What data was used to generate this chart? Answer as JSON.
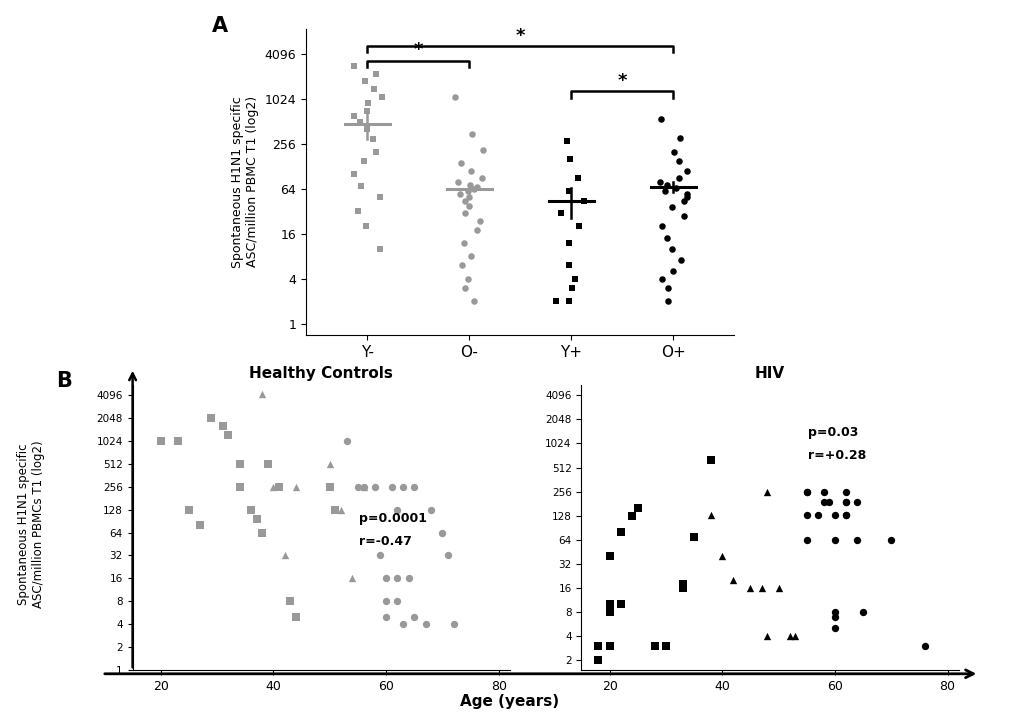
{
  "panel_A": {
    "ylabel": "Spontaneous H1N1 specific\nASC/million PBMC T1 (log2)",
    "groups": [
      "Y-",
      "O-",
      "Y+",
      "O+"
    ],
    "colors": [
      "#999999",
      "#999999",
      "#000000",
      "#000000"
    ],
    "markers": [
      "s",
      "o",
      "s",
      "o"
    ],
    "means": [
      480,
      64,
      44,
      68
    ],
    "sem_low": [
      300,
      56,
      26,
      58
    ],
    "sem_high": [
      760,
      73,
      65,
      78
    ],
    "yticks": [
      1,
      4,
      16,
      64,
      256,
      1024,
      4096
    ],
    "ylim": [
      0.7,
      9000
    ],
    "Y_minus_data": [
      2800,
      2200,
      1800,
      1400,
      1100,
      900,
      700,
      600,
      500,
      400,
      300,
      200,
      150,
      100,
      70,
      50,
      32,
      20,
      10
    ],
    "O_minus_data": [
      1100,
      350,
      210,
      140,
      110,
      90,
      80,
      72,
      68,
      64,
      60,
      55,
      50,
      44,
      38,
      30,
      24,
      18,
      12,
      8,
      6,
      4,
      3,
      2
    ],
    "Y_plus_data": [
      280,
      160,
      90,
      60,
      44,
      30,
      20,
      12,
      6,
      4,
      3,
      2,
      2
    ],
    "O_plus_data": [
      560,
      310,
      200,
      150,
      110,
      90,
      80,
      72,
      66,
      60,
      55,
      50,
      44,
      36,
      28,
      20,
      14,
      10,
      7,
      5,
      4,
      3,
      2
    ]
  },
  "panel_B_HC": {
    "title": "Healthy Controls",
    "color": "#999999",
    "p_text": "p=0.0001",
    "r_text": "r=-0.47",
    "yticks": [
      1,
      2,
      4,
      8,
      16,
      32,
      64,
      128,
      256,
      512,
      1024,
      2048,
      4096
    ],
    "xlim": [
      15,
      82
    ],
    "ylim": [
      1,
      5500
    ],
    "young_squares": [
      [
        20,
        1024
      ],
      [
        23,
        1024
      ],
      [
        25,
        128
      ],
      [
        27,
        80
      ],
      [
        29,
        2048
      ],
      [
        31,
        1600
      ],
      [
        32,
        1200
      ],
      [
        34,
        512
      ],
      [
        34,
        256
      ],
      [
        36,
        128
      ],
      [
        37,
        96
      ],
      [
        38,
        64
      ],
      [
        39,
        512
      ],
      [
        41,
        256
      ],
      [
        43,
        8
      ],
      [
        44,
        5
      ],
      [
        50,
        256
      ],
      [
        51,
        128
      ]
    ],
    "middle_triangles": [
      [
        38,
        4200
      ],
      [
        40,
        256
      ],
      [
        42,
        32
      ],
      [
        44,
        256
      ],
      [
        50,
        512
      ],
      [
        52,
        128
      ],
      [
        54,
        16
      ],
      [
        56,
        256
      ]
    ],
    "old_circles": [
      [
        53,
        1024
      ],
      [
        55,
        256
      ],
      [
        56,
        256
      ],
      [
        58,
        256
      ],
      [
        59,
        32
      ],
      [
        60,
        16
      ],
      [
        60,
        8
      ],
      [
        60,
        5
      ],
      [
        61,
        256
      ],
      [
        62,
        128
      ],
      [
        62,
        16
      ],
      [
        62,
        8
      ],
      [
        63,
        4
      ],
      [
        63,
        256
      ],
      [
        64,
        16
      ],
      [
        65,
        256
      ],
      [
        65,
        5
      ],
      [
        67,
        4
      ],
      [
        68,
        128
      ],
      [
        70,
        64
      ],
      [
        71,
        32
      ],
      [
        72,
        4
      ]
    ]
  },
  "panel_B_HIV": {
    "title": "HIV",
    "color": "#000000",
    "p_text": "p=0.03",
    "r_text": "r=+0.28",
    "yticks": [
      2,
      4,
      8,
      16,
      32,
      64,
      128,
      256,
      512,
      1024,
      2048,
      4096
    ],
    "xlim": [
      15,
      82
    ],
    "ylim": [
      1.5,
      5500
    ],
    "young_squares": [
      [
        18,
        3
      ],
      [
        18,
        2
      ],
      [
        18,
        2
      ],
      [
        20,
        40
      ],
      [
        20,
        10
      ],
      [
        20,
        8
      ],
      [
        20,
        3
      ],
      [
        22,
        80
      ],
      [
        22,
        10
      ],
      [
        24,
        128
      ],
      [
        25,
        160
      ],
      [
        28,
        3
      ],
      [
        30,
        3
      ],
      [
        33,
        18
      ],
      [
        33,
        16
      ],
      [
        35,
        70
      ],
      [
        38,
        640
      ]
    ],
    "middle_triangles": [
      [
        38,
        130
      ],
      [
        40,
        40
      ],
      [
        42,
        20
      ],
      [
        45,
        16
      ],
      [
        47,
        16
      ],
      [
        48,
        4
      ],
      [
        48,
        256
      ],
      [
        50,
        16
      ],
      [
        52,
        4
      ],
      [
        53,
        4
      ]
    ],
    "old_circles": [
      [
        55,
        256
      ],
      [
        55,
        256
      ],
      [
        55,
        130
      ],
      [
        55,
        64
      ],
      [
        57,
        130
      ],
      [
        58,
        256
      ],
      [
        58,
        192
      ],
      [
        59,
        192
      ],
      [
        60,
        130
      ],
      [
        60,
        64
      ],
      [
        60,
        8
      ],
      [
        60,
        7
      ],
      [
        60,
        5
      ],
      [
        62,
        256
      ],
      [
        62,
        192
      ],
      [
        62,
        130
      ],
      [
        62,
        130
      ],
      [
        62,
        192
      ],
      [
        64,
        192
      ],
      [
        64,
        64
      ],
      [
        65,
        8
      ],
      [
        70,
        64
      ],
      [
        76,
        3
      ]
    ]
  },
  "xlabel": "Age (years)",
  "background_color": "#ffffff"
}
